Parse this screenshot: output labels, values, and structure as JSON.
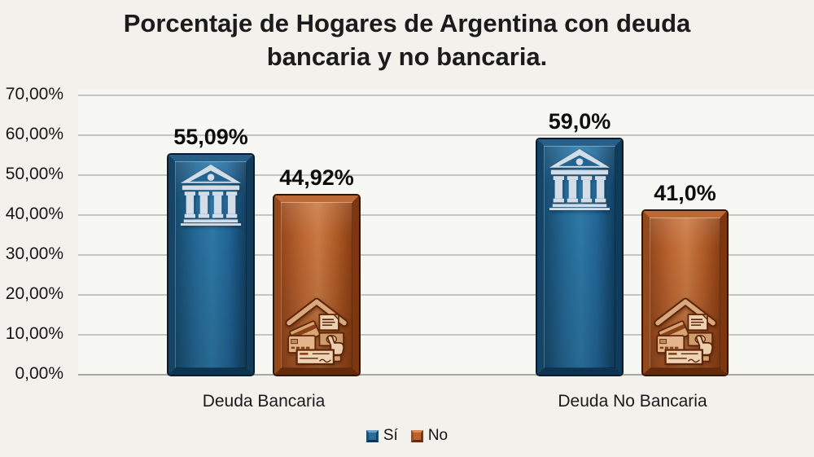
{
  "title": {
    "full": "Porcentaje de Hogares de Argentina con deuda bancaria y no bancaria.",
    "line1": "Porcentaje de Hogares de Argentina con deuda",
    "line2": "bancaria y no bancaria."
  },
  "chart_data": {
    "type": "bar",
    "title": "Porcentaje de Hogares de Argentina con deuda bancaria y no bancaria.",
    "categories": [
      "Deuda Bancaria",
      "Deuda No Bancaria"
    ],
    "series": [
      {
        "name": "Sí",
        "color": "#2a6d9b",
        "values": [
          55.09,
          59.0
        ],
        "value_labels": [
          "55,09%",
          "59,0%"
        ],
        "icon": "bank-icon"
      },
      {
        "name": "No",
        "color": "#bc6130",
        "values": [
          44.92,
          41.0
        ],
        "value_labels": [
          "44,92%",
          "41,0%"
        ],
        "icon": "household-debt-icon"
      }
    ],
    "xlabel": "",
    "ylabel": "",
    "ylim": [
      0,
      70
    ],
    "ytick_step": 10,
    "yticks": [
      "70,00%",
      "60,00%",
      "50,00%",
      "40,00%",
      "30,00%",
      "20,00%",
      "10,00%",
      "0,00%"
    ],
    "grid": true,
    "legend_position": "bottom",
    "decimal_separator": ","
  },
  "legend": {
    "items": [
      {
        "label": "Sí",
        "color": "#2a6d9b"
      },
      {
        "label": "No",
        "color": "#bc6130"
      }
    ]
  },
  "colors": {
    "background": "#f2f1ec",
    "plot_background": "#f7f7f3",
    "gridline": "#c6c6c1",
    "bar_si": "#2a6d9b",
    "bar_no": "#bc6130",
    "text": "#1a1a1a"
  }
}
